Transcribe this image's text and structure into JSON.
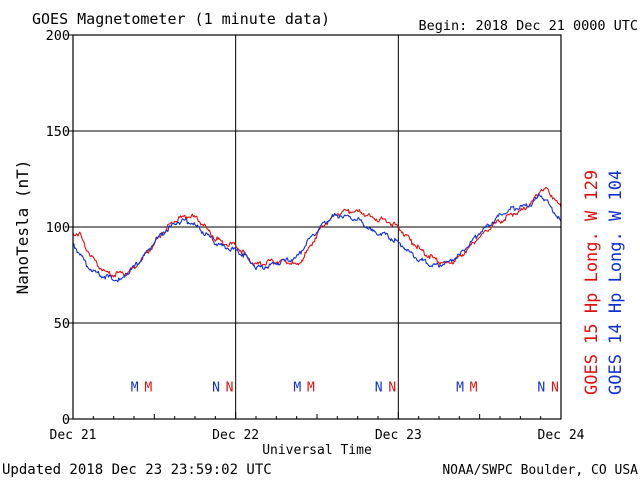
{
  "header": {
    "title": "GOES Magnetometer (1 minute data)",
    "begin": "Begin:  2018 Dec 21 0000 UTC"
  },
  "footer": {
    "updated": "Updated 2018 Dec 23 23:59:02 UTC",
    "credit": "NOAA/SWPC Boulder, CO USA"
  },
  "colors": {
    "goes15": "#e01010",
    "goes14": "#1030d0",
    "grid": "#000000"
  },
  "chart_data": {
    "type": "line",
    "title": "GOES Magnetometer (1 minute data)",
    "xlabel": "Universal Time",
    "ylabel": "NanoTesla (nT)",
    "ylim": [
      0,
      200
    ],
    "xlim": [
      0,
      72
    ],
    "x_unit": "hours since 2018 Dec 21 0000 UTC",
    "x_ticks": [
      {
        "x": 0,
        "label": "Dec 21"
      },
      {
        "x": 24,
        "label": "Dec 22"
      },
      {
        "x": 48,
        "label": "Dec 23"
      },
      {
        "x": 72,
        "label": "Dec 24"
      }
    ],
    "y_ticks": [
      0,
      50,
      100,
      150,
      200
    ],
    "grid": true,
    "series": [
      {
        "name": "GOES 15 Hp  Long. W 129",
        "color": "#e01010",
        "points": [
          [
            0,
            97
          ],
          [
            1,
            96
          ],
          [
            2,
            89
          ],
          [
            3,
            83
          ],
          [
            4,
            79
          ],
          [
            5,
            76
          ],
          [
            6,
            75
          ],
          [
            7,
            76
          ],
          [
            8,
            76
          ],
          [
            9,
            79
          ],
          [
            10,
            83
          ],
          [
            11,
            87
          ],
          [
            12,
            91
          ],
          [
            13,
            96
          ],
          [
            14,
            100
          ],
          [
            15,
            103
          ],
          [
            16,
            105
          ],
          [
            17,
            106
          ],
          [
            18,
            105
          ],
          [
            19,
            102
          ],
          [
            20,
            98
          ],
          [
            21,
            94
          ],
          [
            22,
            92
          ],
          [
            23,
            91
          ],
          [
            24,
            91
          ],
          [
            25,
            87
          ],
          [
            26,
            83
          ],
          [
            27,
            80
          ],
          [
            28,
            81
          ],
          [
            29,
            82
          ],
          [
            30,
            82
          ],
          [
            31,
            82
          ],
          [
            32,
            82
          ],
          [
            33,
            80
          ],
          [
            34,
            84
          ],
          [
            35,
            90
          ],
          [
            36,
            96
          ],
          [
            37,
            101
          ],
          [
            38,
            104
          ],
          [
            39,
            107
          ],
          [
            40,
            108
          ],
          [
            41,
            108
          ],
          [
            42,
            108
          ],
          [
            43,
            107
          ],
          [
            44,
            105
          ],
          [
            45,
            104
          ],
          [
            46,
            104
          ],
          [
            47,
            102
          ],
          [
            48,
            100
          ],
          [
            49,
            96
          ],
          [
            50,
            92
          ],
          [
            51,
            89
          ],
          [
            52,
            86
          ],
          [
            53,
            84
          ],
          [
            54,
            82
          ],
          [
            55,
            81
          ],
          [
            56,
            82
          ],
          [
            57,
            84
          ],
          [
            58,
            88
          ],
          [
            59,
            91
          ],
          [
            60,
            95
          ],
          [
            61,
            98
          ],
          [
            62,
            101
          ],
          [
            63,
            103
          ],
          [
            64,
            105
          ],
          [
            65,
            107
          ],
          [
            66,
            108
          ],
          [
            67,
            111
          ],
          [
            68,
            114
          ],
          [
            69,
            120
          ],
          [
            70,
            119
          ],
          [
            71,
            115
          ],
          [
            72,
            110
          ]
        ]
      },
      {
        "name": "GOES 14 Hp  Long. W 104",
        "color": "#1030d0",
        "points": [
          [
            0,
            91
          ],
          [
            1,
            86
          ],
          [
            2,
            80
          ],
          [
            3,
            77
          ],
          [
            4,
            75
          ],
          [
            5,
            74
          ],
          [
            6,
            73
          ],
          [
            7,
            72
          ],
          [
            8,
            76
          ],
          [
            9,
            79
          ],
          [
            10,
            83
          ],
          [
            11,
            87
          ],
          [
            12,
            92
          ],
          [
            13,
            96
          ],
          [
            14,
            99
          ],
          [
            15,
            102
          ],
          [
            16,
            103
          ],
          [
            17,
            103
          ],
          [
            18,
            101
          ],
          [
            19,
            98
          ],
          [
            20,
            95
          ],
          [
            21,
            92
          ],
          [
            22,
            90
          ],
          [
            23,
            89
          ],
          [
            24,
            88
          ],
          [
            25,
            86
          ],
          [
            26,
            83
          ],
          [
            27,
            79
          ],
          [
            28,
            79
          ],
          [
            29,
            80
          ],
          [
            30,
            81
          ],
          [
            31,
            82
          ],
          [
            32,
            83
          ],
          [
            33,
            84
          ],
          [
            34,
            89
          ],
          [
            35,
            94
          ],
          [
            36,
            98
          ],
          [
            37,
            102
          ],
          [
            38,
            105
          ],
          [
            39,
            106
          ],
          [
            40,
            106
          ],
          [
            41,
            105
          ],
          [
            42,
            104
          ],
          [
            43,
            101
          ],
          [
            44,
            98
          ],
          [
            45,
            97
          ],
          [
            46,
            96
          ],
          [
            47,
            94
          ],
          [
            48,
            92
          ],
          [
            49,
            89
          ],
          [
            50,
            86
          ],
          [
            51,
            83
          ],
          [
            52,
            82
          ],
          [
            53,
            80
          ],
          [
            54,
            80
          ],
          [
            55,
            81
          ],
          [
            56,
            83
          ],
          [
            57,
            85
          ],
          [
            58,
            89
          ],
          [
            59,
            93
          ],
          [
            60,
            97
          ],
          [
            61,
            100
          ],
          [
            62,
            103
          ],
          [
            63,
            106
          ],
          [
            64,
            108
          ],
          [
            65,
            110
          ],
          [
            66,
            110
          ],
          [
            67,
            111
          ],
          [
            68,
            113
          ],
          [
            69,
            117
          ],
          [
            70,
            113
          ],
          [
            71,
            108
          ],
          [
            72,
            103
          ]
        ]
      }
    ],
    "markers": [
      {
        "x": 9.1,
        "label": "M",
        "series": "GOES 14 Hp  Long. W 104",
        "color": "#1030d0"
      },
      {
        "x": 11.1,
        "label": "M",
        "series": "GOES 15 Hp  Long. W 129",
        "color": "#e01010"
      },
      {
        "x": 21.1,
        "label": "N",
        "series": "GOES 14 Hp  Long. W 104",
        "color": "#1030d0"
      },
      {
        "x": 23.1,
        "label": "N",
        "series": "GOES 15 Hp  Long. W 129",
        "color": "#e01010"
      },
      {
        "x": 33.1,
        "label": "M",
        "series": "GOES 14 Hp  Long. W 104",
        "color": "#1030d0"
      },
      {
        "x": 35.1,
        "label": "M",
        "series": "GOES 15 Hp  Long. W 129",
        "color": "#e01010"
      },
      {
        "x": 45.1,
        "label": "N",
        "series": "GOES 14 Hp  Long. W 104",
        "color": "#1030d0"
      },
      {
        "x": 47.1,
        "label": "N",
        "series": "GOES 15 Hp  Long. W 129",
        "color": "#e01010"
      },
      {
        "x": 57.1,
        "label": "M",
        "series": "GOES 14 Hp  Long. W 104",
        "color": "#1030d0"
      },
      {
        "x": 59.1,
        "label": "M",
        "series": "GOES 15 Hp  Long. W 129",
        "color": "#e01010"
      },
      {
        "x": 69.1,
        "label": "N",
        "series": "GOES 14 Hp  Long. W 104",
        "color": "#1030d0"
      },
      {
        "x": 71.1,
        "label": "N",
        "series": "GOES 15 Hp  Long. W 129",
        "color": "#e01010"
      }
    ],
    "marker_level": 17
  }
}
